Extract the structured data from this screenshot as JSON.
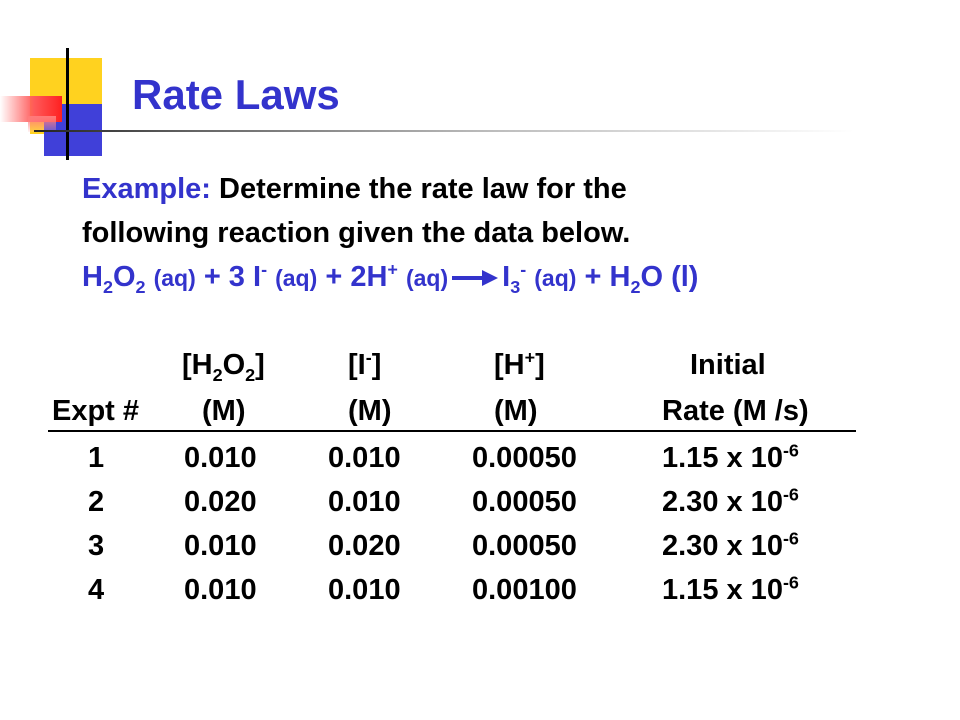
{
  "slide": {
    "title": "Rate Laws",
    "example_label": "Example:",
    "example_text": "Determine the rate law for the",
    "example_text_2": "following reaction given the data below.",
    "reaction": {
      "reactant1": "H",
      "reactant1_sub": "2",
      "reactant1_b": "O",
      "reactant1_sub2": "2",
      "state_aq": "(aq)",
      "plus1": "+ 3 I",
      "minus": "-",
      "plus2": "+ 2H",
      "plus_sign": "+",
      "product1": "I",
      "product1_sub": "3",
      "plus3": "+ H",
      "water_sub": "2",
      "water_o": "O",
      "state_l": "(l)"
    }
  },
  "table": {
    "headers": {
      "expt": "Expt #",
      "h2o2_top_a": "[H",
      "h2o2_sub1": "2",
      "h2o2_top_b": "O",
      "h2o2_sub2": "2",
      "h2o2_top_c": "]",
      "iodide_top_a": "[I",
      "iodide_sup": "-",
      "iodide_top_b": "]",
      "h_top_a": "[H",
      "h_sup": "+",
      "h_top_b": "]",
      "rate_top": "Initial",
      "unit_m": "(M)",
      "rate_bottom": "Rate (M /s)"
    },
    "rows": [
      {
        "expt": "1",
        "h2o2": "0.010",
        "iodide": "0.010",
        "h": "0.00050",
        "rate": "1.15 x 10",
        "exp": "-6"
      },
      {
        "expt": "2",
        "h2o2": "0.020",
        "iodide": "0.010",
        "h": "0.00050",
        "rate": "2.30 x 10",
        "exp": "-6"
      },
      {
        "expt": "3",
        "h2o2": "0.010",
        "iodide": "0.020",
        "h": "0.00050",
        "rate": "2.30 x 10",
        "exp": "-6"
      },
      {
        "expt": "4",
        "h2o2": "0.010",
        "iodide": "0.010",
        "h": "0.00100",
        "rate": "1.15 x 10",
        "exp": "-6"
      }
    ]
  },
  "colors": {
    "title": "#3333cc",
    "accent_yellow": "#ffd21f",
    "accent_blue": "#4040d9",
    "accent_red": "#ff2020"
  }
}
